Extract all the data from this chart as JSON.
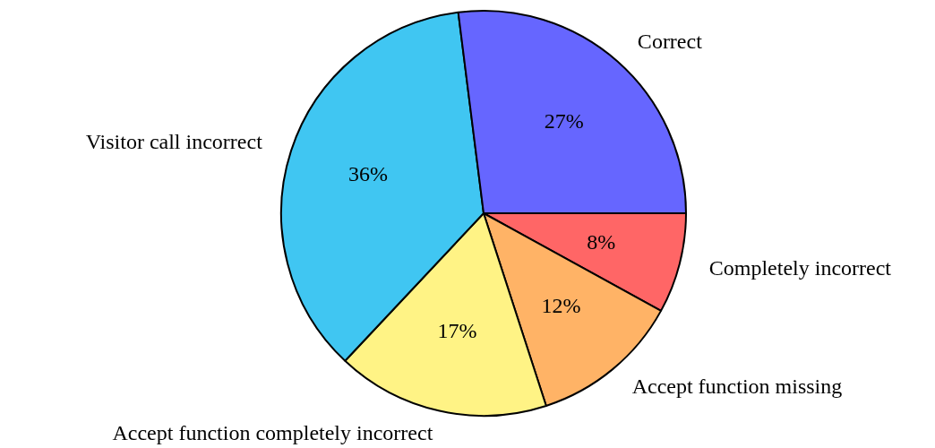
{
  "chart_data": {
    "type": "pie",
    "categories": [
      "Completely incorrect",
      "Accept function missing",
      "Accept function completely incorrect",
      "Visitor call incorrect",
      "Correct"
    ],
    "values": [
      8,
      12,
      17,
      36,
      27
    ],
    "colors": [
      "#ff6666",
      "#ffb366",
      "#fff385",
      "#40c6f2",
      "#6666ff"
    ],
    "value_labels": [
      "8%",
      "12%",
      "17%",
      "36%",
      "27%"
    ]
  }
}
